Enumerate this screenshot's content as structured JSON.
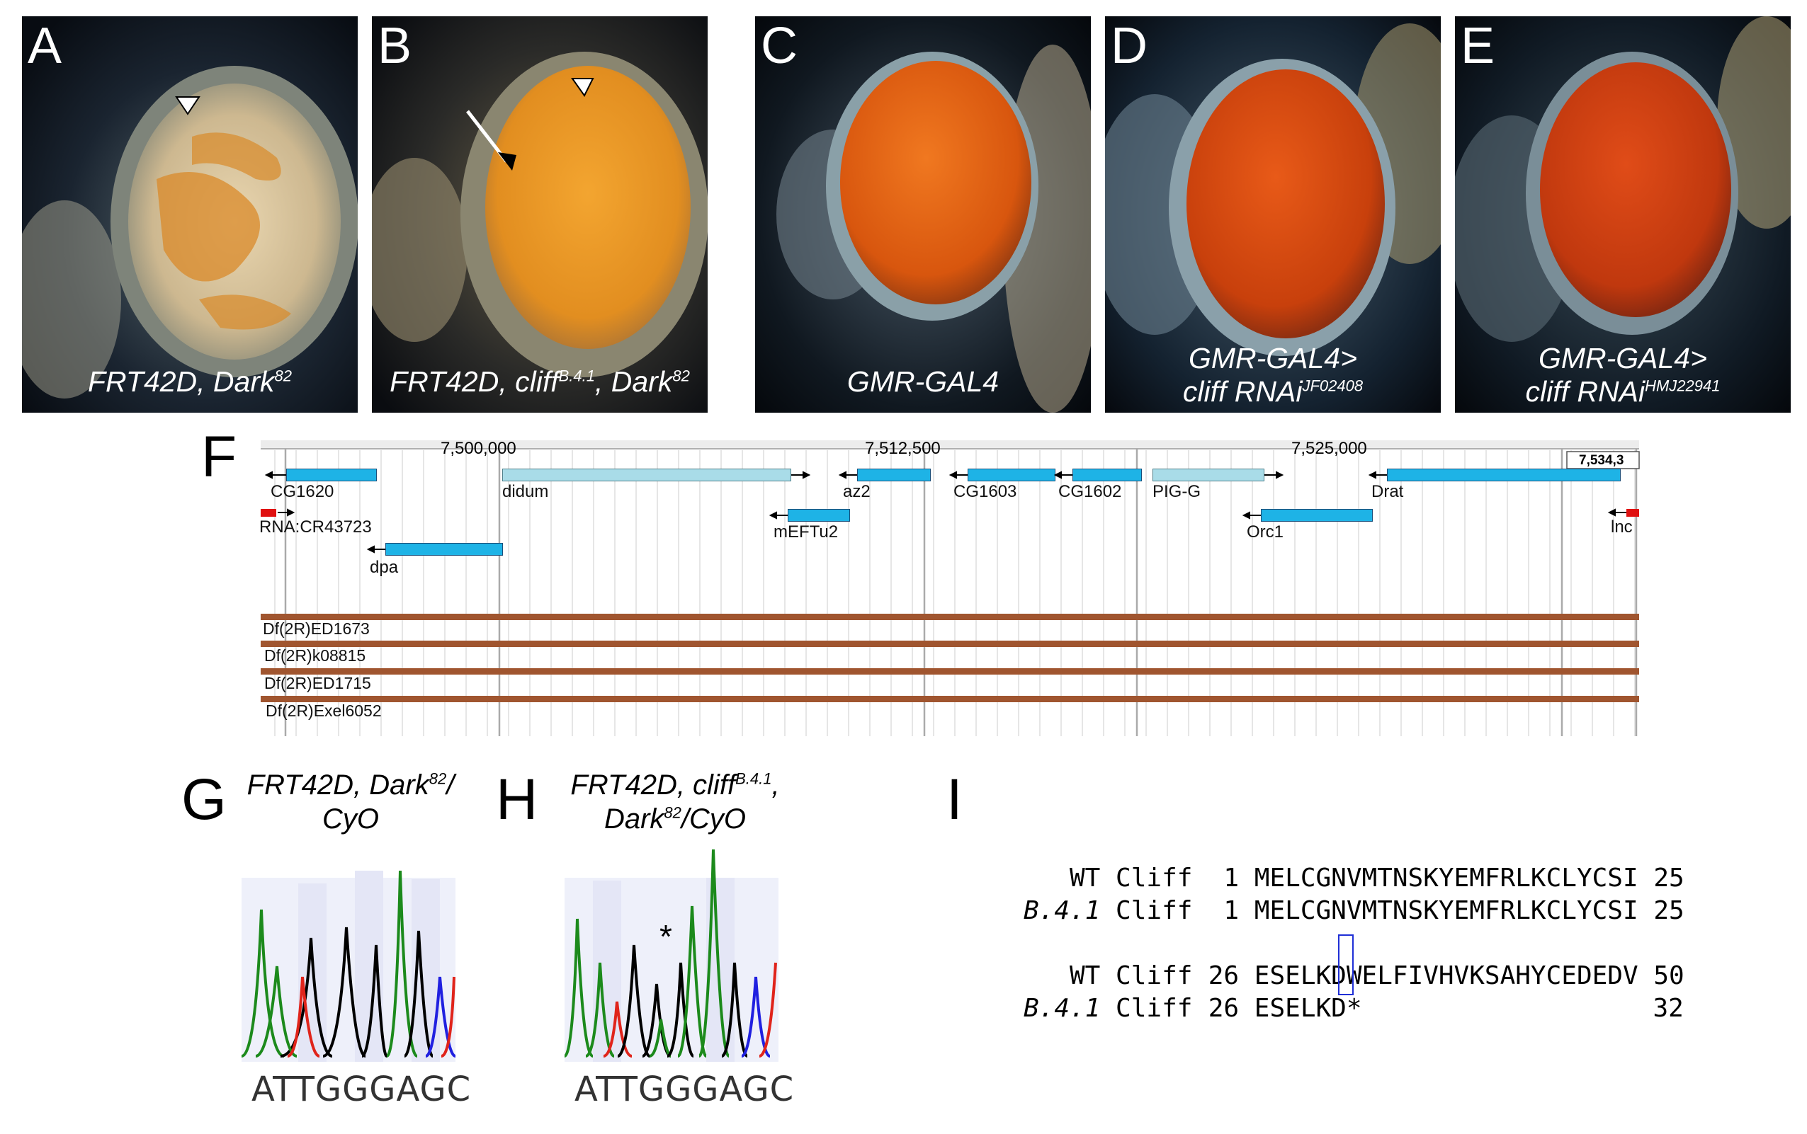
{
  "panels": [
    {
      "letter": "A",
      "caption": "FRT42D, Dark",
      "sup": "82",
      "caption2": "",
      "sup2": "",
      "caption3": ""
    },
    {
      "letter": "B",
      "caption": "FRT42D, cliff",
      "sup": "B.4.1",
      "caption2": ", Dark",
      "sup2": "82",
      "caption3": ""
    },
    {
      "letter": "C",
      "caption": "GMR-GAL4",
      "sup": "",
      "caption2": "",
      "sup2": "",
      "caption3": ""
    },
    {
      "letter": "D",
      "caption": "GMR-GAL4>",
      "sup": "",
      "caption2": "cliff RNAi",
      "sup2": "JF02408",
      "caption3": ""
    },
    {
      "letter": "E",
      "caption": "GMR-GAL4>",
      "sup": "",
      "caption2": "cliff RNAi",
      "sup2": "HMJ22941",
      "caption3": ""
    }
  ],
  "panelF": {
    "letter": "F",
    "coords": [
      "7,500,000",
      "7,512,500",
      "7,525,000",
      "7,534,3"
    ],
    "genes": [
      "CG1620",
      "didum",
      "az2",
      "CG1603",
      "CG1602",
      "PIG-G",
      "Drat",
      "RNA:CR43723",
      "mEFTu2",
      "Orc1",
      "lnc",
      "dpa"
    ],
    "deficiencies": [
      "Df(2R)ED1673",
      "Df(2R)k08815",
      "Df(2R)ED1715",
      "Df(2R)Exel6052"
    ]
  },
  "panelG": {
    "letter": "G",
    "title1": "FRT42D, Dark",
    "sup": "82",
    "title1b": "/",
    "title2": "CyO",
    "bases": "ATTGGGAGC"
  },
  "panelH": {
    "letter": "H",
    "title1": "FRT42D, cliff",
    "sup": "B.4.1",
    "title1b": ",",
    "title2": "Dark",
    "sup2": "82",
    "title2b": "/CyO",
    "mark": "*",
    "bases": "ATTGGGAGC"
  },
  "panelI": {
    "letter": "I",
    "rows": [
      {
        "prefix": "WT",
        "name": "Cliff",
        "start": "1",
        "seq": "MELCGNVMTNSKYEMFRLKCLYCSI",
        "end": "25"
      },
      {
        "prefix": "B.4.1",
        "name": "Cliff",
        "start": "1",
        "seq": "MELCGNVMTNSKYEMFRLKCLYCSI",
        "end": "25"
      },
      {
        "prefix": "WT",
        "name": "Cliff",
        "start": "26",
        "seq": "ESELKDWELFIVHVKSAHYCEDEDV",
        "end": "50"
      },
      {
        "prefix": "B.4.1",
        "name": "Cliff",
        "start": "26",
        "seq": "ESELKD*",
        "end": "32"
      }
    ]
  },
  "colors": {
    "gene": "#1eb3e6",
    "deficiency": "#a0552f",
    "highlight_box": "#1f2fd6",
    "trace_green": "#1c8a1c",
    "trace_red": "#e0241b",
    "trace_blue": "#2020e0",
    "trace_black": "#000000"
  }
}
